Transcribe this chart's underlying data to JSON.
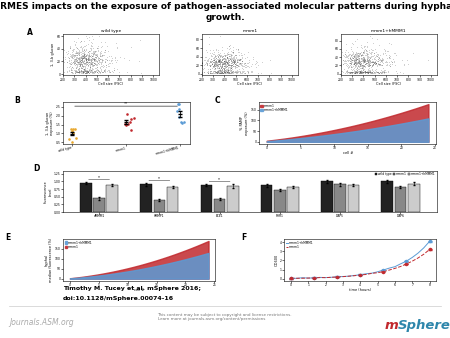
{
  "title_line1": "ERMES impacts on the exposure of pathogen-associated molecular patterns during hyphal",
  "title_line2": "growth.",
  "title_fontsize": 6.5,
  "title_fontweight": "bold",
  "bg_color": "#ffffff",
  "figure_width": 4.5,
  "figure_height": 3.38,
  "panel_A_labels": [
    "wild type",
    "mmm1",
    "mmm1+hMMM1"
  ],
  "panel_A_xlabel": "Cell size (FSC)",
  "panel_A_ylabel": "1, 3-b glucan",
  "panel_B_groups": [
    "wild type",
    "mmm1",
    "mmm1+hMMM1"
  ],
  "panel_B_ylabel": "1, 3-b glucan\nexposure (%)",
  "panel_C_legend": [
    "mmm1+hMMM1",
    "mmm1"
  ],
  "panel_C_colors": [
    "#5b9bd5",
    "#c1292e"
  ],
  "panel_C_ylabel": "% PAMP\nexposure (%)",
  "panel_D_groups": [
    "dMMM1",
    "hMMP1",
    "ECE1",
    "PHR1",
    "DAP5",
    "DAP6"
  ],
  "panel_D_legend": [
    "wild type",
    "mmm1",
    "mmm1+hMMM1"
  ],
  "panel_D_colors": [
    "#222222",
    "#888888",
    "#cccccc"
  ],
  "panel_D_ylabel": "fluorescence\nlevel",
  "panel_E_legend": [
    "mmm1+hMMM1",
    "mmm1"
  ],
  "panel_E_colors": [
    "#5b9bd5",
    "#c1292e"
  ],
  "panel_E_ylabel": "hyphal\nmedian fluorescence (%)",
  "panel_E_xlabel": "cell #",
  "panel_F_legend": [
    "mmm1+hMMM1",
    "mmm1"
  ],
  "panel_F_colors": [
    "#5b9bd5",
    "#c1292e"
  ],
  "panel_F_ylabel": "OD600",
  "panel_F_xlabel": "time (hours)",
  "footer_text1": "Timothy M. Tucey et al. mSphere 2016;",
  "footer_text2": "doi:10.1128/mSphere.00074-16",
  "footer_small": "This content may be subject to copyright and license restrictions.\nLearn more at journals.asm.org/content/permissions",
  "journal_text": "Journals.ASM.org",
  "msphere_color_m": "#c1292e",
  "msphere_color_sphere": "#2e86ab",
  "scatter_dot_colors_B": [
    "#e8a830",
    "#c1292e",
    "#5b9bd5"
  ]
}
